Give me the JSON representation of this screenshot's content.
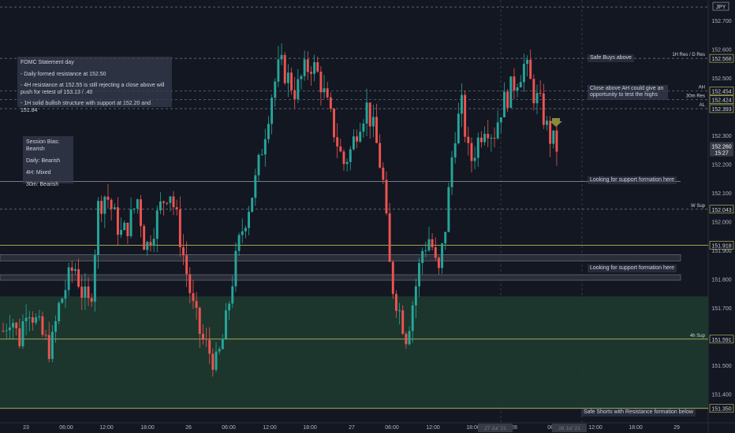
{
  "chart_data": {
    "type": "candlestick",
    "symbol_tag": "JPY",
    "ylim": [
      151.3,
      152.76
    ],
    "y_ticks": [
      "152.700",
      "152.600",
      "152.500",
      "152.300",
      "152.200",
      "152.100",
      "152.000",
      "151.900",
      "151.800",
      "151.700",
      "151.500",
      "151.400"
    ],
    "x_ticks": [
      "23",
      "06:00",
      "12:00",
      "18:00",
      "26",
      "06:00",
      "12:00",
      "18:00",
      "27",
      "06:00",
      "12:00",
      "18:00",
      "28",
      "06:00",
      "12:00",
      "18:00",
      "29"
    ],
    "cursor_x_labels": [
      "27 Jul '21",
      "28 Jul '21"
    ],
    "price_labels": [
      {
        "value": "152.568",
        "style": "dashed",
        "side_label": "1H Res / D Res"
      },
      {
        "value": "152.454",
        "style": "dashed",
        "side_label": "AH"
      },
      {
        "value": "152.424",
        "style": "dashed",
        "side_label": "30m Res"
      },
      {
        "value": "152.393",
        "style": "dashed",
        "side_label": "AL"
      },
      {
        "value": "152.043",
        "style": "dashed",
        "side_label": "W Sup"
      },
      {
        "value": "151.918",
        "style": "solid-yellow",
        "side_label": ""
      },
      {
        "value": "151.591",
        "style": "solid-yellow",
        "side_label": "4h Sup"
      },
      {
        "value": "151.350",
        "style": "solid-yellow",
        "side_label": ""
      }
    ],
    "current_price": {
      "value": "152.260",
      "countdown": "15:27"
    },
    "zones": [
      {
        "from": 151.59,
        "to": 151.74,
        "color": "#1e3a2f"
      },
      {
        "from": 151.35,
        "to": 151.59,
        "color": "#1e3a2f"
      }
    ],
    "candles_start": [
      151.62,
      151.68,
      151.58,
      151.72,
      151.66,
      151.6,
      151.55,
      151.7,
      151.78,
      151.85,
      151.75,
      151.7,
      152.05,
      152.1,
      152.02,
      151.95,
      152.0,
      152.08,
      151.9,
      151.98,
      152.06,
      152.12,
      152.0,
      151.85,
      151.7,
      151.6,
      151.55,
      151.5,
      151.62,
      151.8,
      151.95,
      152.05,
      152.15,
      152.3,
      152.45,
      152.55,
      152.5,
      152.45,
      152.52,
      152.55,
      152.5,
      152.4,
      152.3,
      152.2,
      152.25,
      152.35,
      152.4,
      152.3,
      152.15,
      151.8,
      151.7,
      151.6,
      151.75,
      151.9,
      151.95,
      151.8,
      152.0,
      152.3,
      152.4,
      152.2,
      152.28,
      152.35,
      152.3,
      152.4,
      152.45,
      152.5,
      152.55,
      152.45,
      152.4,
      152.3,
      152.26
    ]
  },
  "notes": {
    "fomc_title": "FOMC Statement day",
    "fomc_line1": "- Daily formed resistance at 152.50",
    "fomc_line2": "- 4H resistance at 152.55 is still rejecting a close above will push for retest of 153.13 / .40",
    "fomc_line3": "- 1H solid bullish structure with support at 152.20 and 151.84",
    "bias_1": "Session Bias: Bearish",
    "bias_2": "Daily: Bearish",
    "bias_3": "4H: Mixed",
    "bias_4": "30m: Bearish",
    "safe_buys": "Safe Buys above",
    "close_above": "Close above AH could give an opportunity to test the highs",
    "support_1": "Looking for support formation here",
    "support_2": "Looking for support formation here",
    "safe_shorts": "Safe Shorts with Resistance formation below"
  },
  "colors": {
    "bull": "#26a69a",
    "bear": "#ef5350",
    "yellow": "#d4d06a",
    "zone": "#1e3a2f",
    "dashed": "#787b86",
    "arrow": "#8a8a3a"
  }
}
